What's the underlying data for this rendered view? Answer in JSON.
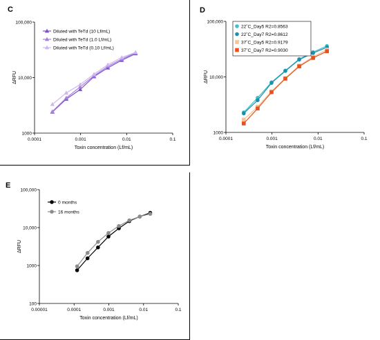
{
  "chart_data": [
    {
      "panel_label": "C",
      "type": "line",
      "xscale": "log",
      "yscale": "log",
      "xlim": [
        0.0001,
        0.1
      ],
      "ylim": [
        1000,
        100000
      ],
      "xticks": [
        "0.0001",
        "0.001",
        "0.01",
        "0.1"
      ],
      "yticks": [
        "1000",
        "10,000",
        "100,000"
      ],
      "xlabel": "Toxin concentration (Lf/mL)",
      "ylabel": "ΔRFU",
      "legend_position": "top-left",
      "series": [
        {
          "name": "Diluted with TeTd (10 Lf/mL)",
          "color": "#7b4fd0",
          "marker": "triangle",
          "x": [
            0.000244,
            0.000488,
            0.000977,
            0.00195,
            0.0039,
            0.0078,
            0.0156
          ],
          "y": [
            2400,
            4100,
            6100,
            10400,
            15000,
            20500,
            27000
          ]
        },
        {
          "name": "Diluted with TeTd (1.0 Lf/mL)",
          "color": "#a77fe0",
          "marker": "triangle",
          "x": [
            0.000244,
            0.000488,
            0.000977,
            0.00195,
            0.0039,
            0.0078,
            0.0156
          ],
          "y": [
            2450,
            4300,
            6800,
            10800,
            16000,
            21500,
            28000
          ]
        },
        {
          "name": "Diluted with TeTd (0.10 Lf/mL)",
          "color": "#cdb6f0",
          "marker": "triangle",
          "x": [
            0.000244,
            0.000488,
            0.000977,
            0.00195,
            0.0039,
            0.0078,
            0.0156
          ],
          "y": [
            3300,
            5300,
            7500,
            11500,
            17000,
            23000,
            28500
          ]
        }
      ]
    },
    {
      "panel_label": "D",
      "type": "line",
      "xscale": "log",
      "yscale": "log",
      "xlim": [
        0.0001,
        0.1
      ],
      "ylim": [
        1000,
        100000
      ],
      "xticks": [
        "0.0001",
        "0.001",
        "0.01",
        "0.1"
      ],
      "yticks": [
        "1000",
        "10,000",
        "100,000"
      ],
      "xlabel": "Toxin concentration (Lf/mL)",
      "ylabel": "ΔRFU",
      "legend_position": "top-left",
      "series": [
        {
          "name": "22˚C_Day5 R2=0.8563",
          "color": "#40c0c8",
          "marker": "circle",
          "x": [
            0.000244,
            0.000488,
            0.000977,
            0.00195,
            0.0039,
            0.0078,
            0.0156
          ],
          "y": [
            2300,
            4200,
            8000,
            13000,
            21000,
            28000,
            36000
          ]
        },
        {
          "name": "22˚C_Day7 R2=0.8612",
          "color": "#1a8fb0",
          "marker": "circle",
          "x": [
            0.000244,
            0.000488,
            0.000977,
            0.00195,
            0.0039,
            0.0078,
            0.0156
          ],
          "y": [
            2200,
            3800,
            7800,
            12800,
            20500,
            27000,
            34000
          ]
        },
        {
          "name": "37˚C_Day5 R2=0.9179",
          "color": "#f2c49a",
          "marker": "square",
          "x": [
            0.000244,
            0.000488,
            0.000977,
            0.00195,
            0.0039,
            0.0078,
            0.0156
          ],
          "y": [
            1700,
            2900,
            5500,
            9500,
            16000,
            23000,
            31000
          ]
        },
        {
          "name": "37˚C_Day7 R2=0.9030",
          "color": "#e8501c",
          "marker": "square",
          "x": [
            0.000244,
            0.000488,
            0.000977,
            0.00195,
            0.0039,
            0.0078,
            0.0156
          ],
          "y": [
            1450,
            2700,
            5300,
            9300,
            15500,
            22000,
            29000
          ]
        }
      ]
    },
    {
      "panel_label": "E",
      "type": "line",
      "xscale": "log",
      "yscale": "log",
      "xlim": [
        1e-05,
        0.1
      ],
      "ylim": [
        100,
        100000
      ],
      "xticks": [
        "0.00001",
        "0.0001",
        "0.001",
        "0.01",
        "0.1"
      ],
      "yticks": [
        "100",
        "1000",
        "10,000",
        "100,000"
      ],
      "xlabel": "Toxin concentration (Lf/mL)",
      "ylabel": "ΔRFU",
      "legend_position": "top-left",
      "series": [
        {
          "name": "0 months",
          "color": "#000000",
          "marker": "circle",
          "x": [
            0.000122,
            0.000244,
            0.000488,
            0.000977,
            0.00195,
            0.0039,
            0.0078,
            0.0156
          ],
          "y": [
            750,
            1550,
            3000,
            5800,
            9600,
            14800,
            19500,
            24500
          ]
        },
        {
          "name": "16 months",
          "color": "#8c8c8c",
          "marker": "circle",
          "x": [
            0.000122,
            0.000244,
            0.000488,
            0.000977,
            0.00195,
            0.0039,
            0.0078,
            0.0156
          ],
          "y": [
            950,
            2150,
            4200,
            7200,
            11000,
            15500,
            19500,
            23000
          ]
        }
      ]
    }
  ]
}
